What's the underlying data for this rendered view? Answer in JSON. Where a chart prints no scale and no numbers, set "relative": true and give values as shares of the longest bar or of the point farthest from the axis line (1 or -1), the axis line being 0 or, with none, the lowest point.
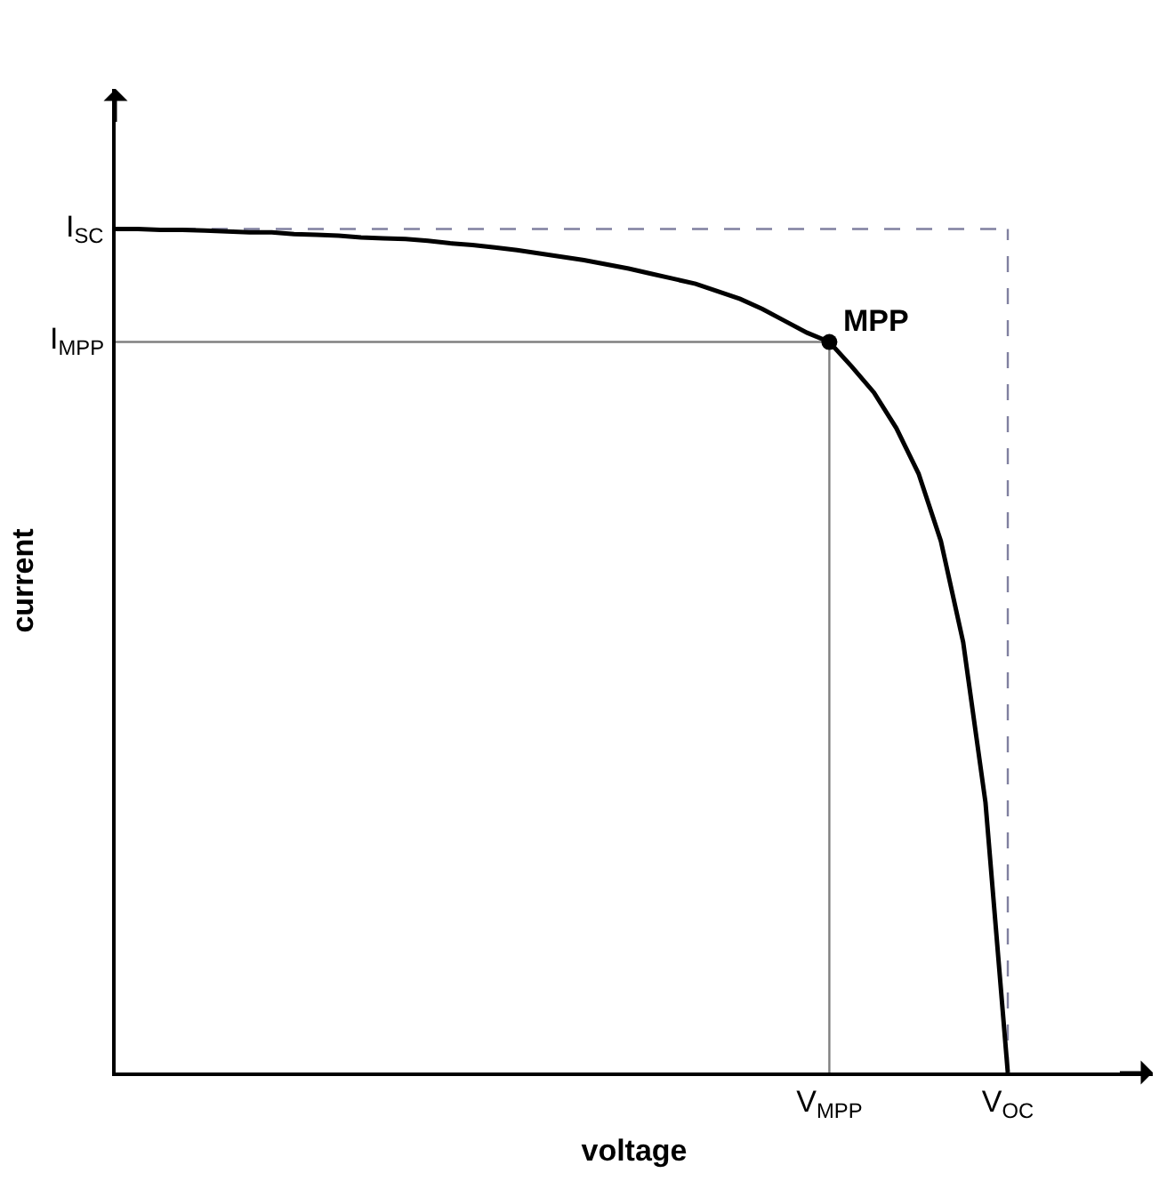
{
  "chart_data": {
    "type": "line",
    "xlabel": "voltage",
    "ylabel": "current",
    "relative": true,
    "grid": false,
    "categories": [
      null,
      null,
      null,
      null,
      null,
      null,
      null,
      null,
      null,
      null,
      null,
      null,
      null,
      null,
      null,
      null,
      null,
      null,
      null,
      null,
      null,
      null,
      null,
      null,
      null,
      null,
      null,
      null,
      null,
      null,
      null,
      null,
      "V$_{MPP}$",
      null,
      null,
      null,
      null,
      null,
      null,
      null,
      "V$_{OC}$",
      null,
      null,
      null,
      null,
      null,
      null
    ],
    "series": [
      {
        "color": "#000000",
        "line_style": "solid",
        "values": [
          1.0,
          1.0,
          0.999,
          0.999,
          0.998,
          0.997,
          0.996,
          0.996,
          0.994,
          0.993,
          0.992,
          0.99,
          0.989,
          0.988,
          0.986,
          0.983,
          0.981,
          0.978,
          0.975,
          0.971,
          0.967,
          0.963,
          0.958,
          0.953,
          0.947,
          0.941,
          0.935,
          0.926,
          0.917,
          0.905,
          0.891,
          0.877,
          0.866,
          0.837,
          0.806,
          0.764,
          0.71,
          0.63,
          0.51,
          0.32,
          0,
          null,
          null,
          null,
          null,
          null,
          null
        ]
      },
      {
        "type": "scatter",
        "marker": "circle",
        "color": "#000000",
        "x": [
          "V$_{MPP}$"
        ],
        "values": [
          0.866
        ]
      }
    ],
    "ref_lines": [
      {
        "axis": "y",
        "value": 0.866,
        "label": "I$_{MPP}$",
        "color": "#808080",
        "line_style": "solid"
      },
      {
        "axis": "y",
        "value": 1,
        "label": "I$_{SC}$",
        "color": "#8080a0",
        "line_style": "dashed"
      }
    ],
    "annotations": [
      {
        "text": "MPP",
        "x": "V$_{MPP}$",
        "y": 0.866
      }
    ]
  }
}
